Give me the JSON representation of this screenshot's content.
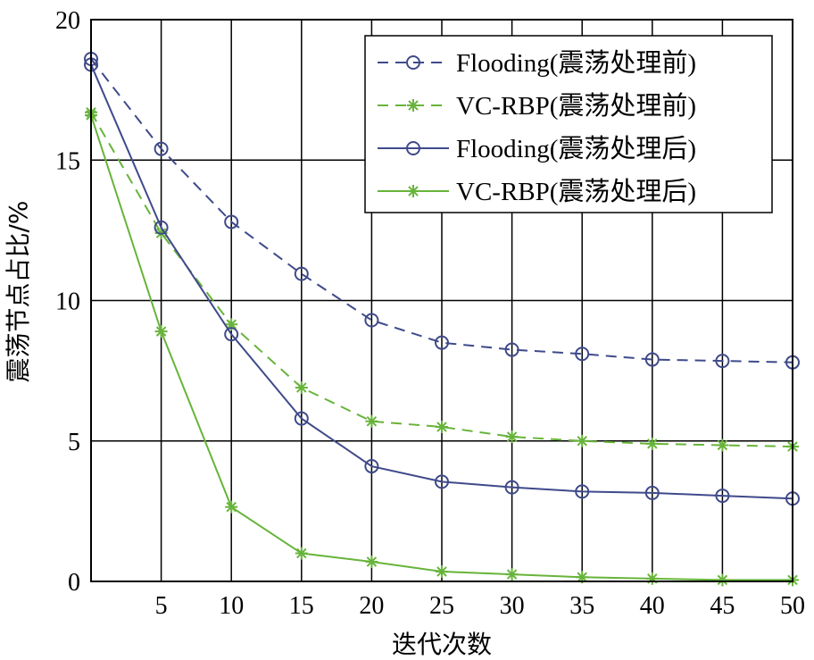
{
  "chart_data": {
    "type": "line",
    "xlabel": "迭代次数",
    "ylabel": "震荡节点占比/%",
    "xlim": [
      0,
      50
    ],
    "ylim": [
      0,
      20
    ],
    "xticks": [
      5,
      10,
      15,
      20,
      25,
      30,
      35,
      40,
      45,
      50
    ],
    "yticks": [
      0,
      5,
      10,
      15,
      20
    ],
    "grid": true,
    "legend_position": "top-right",
    "x": [
      0,
      5,
      10,
      15,
      20,
      25,
      30,
      35,
      40,
      45,
      50
    ],
    "series": [
      {
        "name": "Flooding(震荡处理前)",
        "color": "#3f4a8a",
        "dash": "dashed",
        "marker": "circle",
        "values": [
          18.6,
          15.4,
          12.8,
          10.95,
          9.3,
          8.5,
          8.25,
          8.1,
          7.9,
          7.85,
          7.8
        ]
      },
      {
        "name": "VC-RBP(震荡处理前)",
        "color": "#67b43a",
        "dash": "dashed",
        "marker": "star",
        "values": [
          16.7,
          12.4,
          9.15,
          6.9,
          5.7,
          5.5,
          5.15,
          5.0,
          4.9,
          4.85,
          4.8
        ]
      },
      {
        "name": "Flooding(震荡处理后)",
        "color": "#3f4a8a",
        "dash": "solid",
        "marker": "circle",
        "values": [
          18.4,
          12.6,
          8.8,
          5.8,
          4.1,
          3.55,
          3.35,
          3.2,
          3.15,
          3.05,
          2.95
        ]
      },
      {
        "name": "VC-RBP(震荡处理后)",
        "color": "#67b43a",
        "dash": "solid",
        "marker": "star",
        "values": [
          16.6,
          8.9,
          2.65,
          1.0,
          0.7,
          0.35,
          0.25,
          0.15,
          0.1,
          0.05,
          0.05
        ]
      }
    ]
  }
}
